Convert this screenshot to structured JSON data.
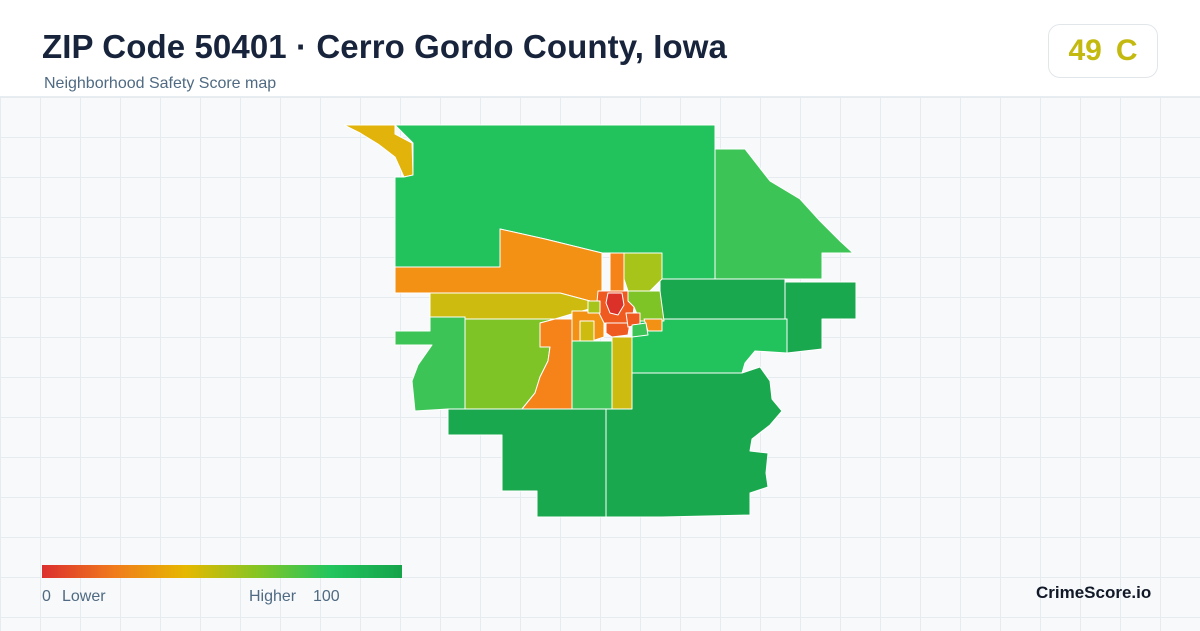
{
  "header": {
    "title": "ZIP Code 50401 · Cerro Gordo County, Iowa",
    "subtitle": "Neighborhood Safety Score map"
  },
  "score": {
    "value": "49",
    "grade": "C",
    "color": "#c4b90f"
  },
  "legend": {
    "low_value": "0",
    "low_label": "Lower",
    "high_label": "Higher",
    "high_value": "100",
    "gradient": [
      "#dc2f2f",
      "#f07b1c",
      "#e6b800",
      "#84c524",
      "#22c55e",
      "#16a34a"
    ]
  },
  "brand": "CrimeScore.io",
  "map": {
    "colors": {
      "dark_green": "#1aa84e",
      "green": "#22c25c",
      "light_green": "#3dc457",
      "yellow_green": "#7ec426",
      "lime": "#a6c41a",
      "mustard": "#cdbb0f",
      "gold": "#e2b30a",
      "orange": "#f39114",
      "dark_orange": "#f5831a",
      "red_orange": "#ee5a1f",
      "red": "#dc3128",
      "border": "#ffffff"
    }
  }
}
